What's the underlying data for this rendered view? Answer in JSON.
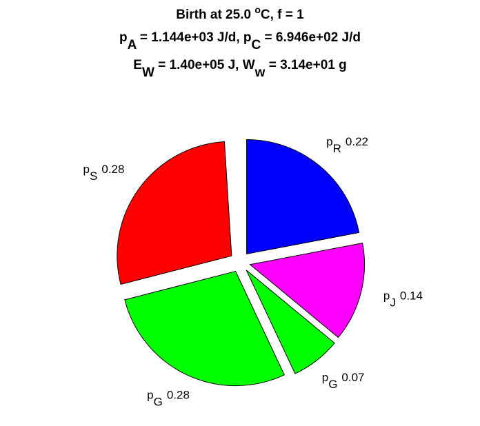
{
  "chart_data": {
    "type": "pie",
    "title": [
      [
        {
          "text": "Birth at 25.0 "
        },
        {
          "sup": "o"
        },
        {
          "text": "C, f = 1"
        }
      ],
      [
        {
          "text": "p"
        },
        {
          "sub": "A"
        },
        {
          "text": " = 1.144e+03 J/d, p"
        },
        {
          "sub": "C"
        },
        {
          "text": " = 6.946e+02 J/d"
        }
      ],
      [
        {
          "text": "E"
        },
        {
          "sub": "W"
        },
        {
          "text": " = 1.40e+05 J, W"
        },
        {
          "sub": "w"
        },
        {
          "text": " = 3.14e+01 g"
        }
      ]
    ],
    "labels": [
      {
        "base": "p",
        "sub": "R"
      },
      {
        "base": "p",
        "sub": "J"
      },
      {
        "base": "p",
        "sub": "G"
      },
      {
        "base": "p",
        "sub": "G"
      },
      {
        "base": "p",
        "sub": "S"
      }
    ],
    "values": [
      0.22,
      0.14,
      0.07,
      0.28,
      0.28
    ],
    "colors": [
      "#0000ff",
      "#ff00ff",
      "#00ff00",
      "#00ff00",
      "#ff0000"
    ],
    "explode": true
  }
}
